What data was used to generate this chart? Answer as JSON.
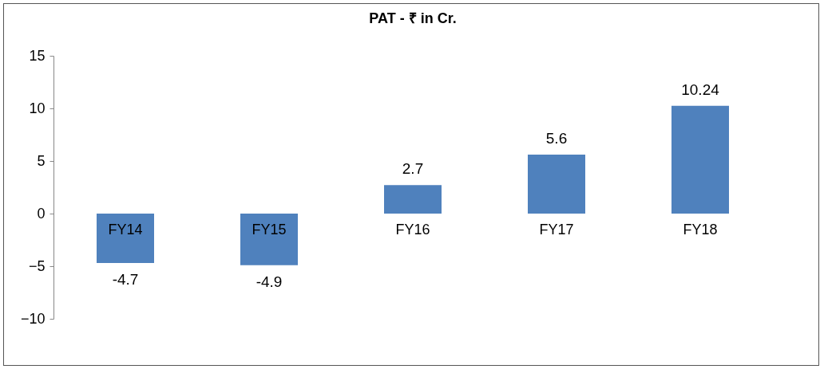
{
  "chart_data": {
    "type": "bar",
    "title": "PAT - ₹ in Cr.",
    "categories": [
      "FY14",
      "FY15",
      "FY16",
      "FY17",
      "FY18"
    ],
    "values": [
      -4.7,
      -4.9,
      2.7,
      5.6,
      10.24
    ],
    "color": "#4f81bd",
    "ylim": [
      -10,
      15
    ],
    "yticks": [
      -10,
      -5,
      0,
      5,
      10,
      15
    ],
    "grid": false,
    "data_labels": true
  }
}
